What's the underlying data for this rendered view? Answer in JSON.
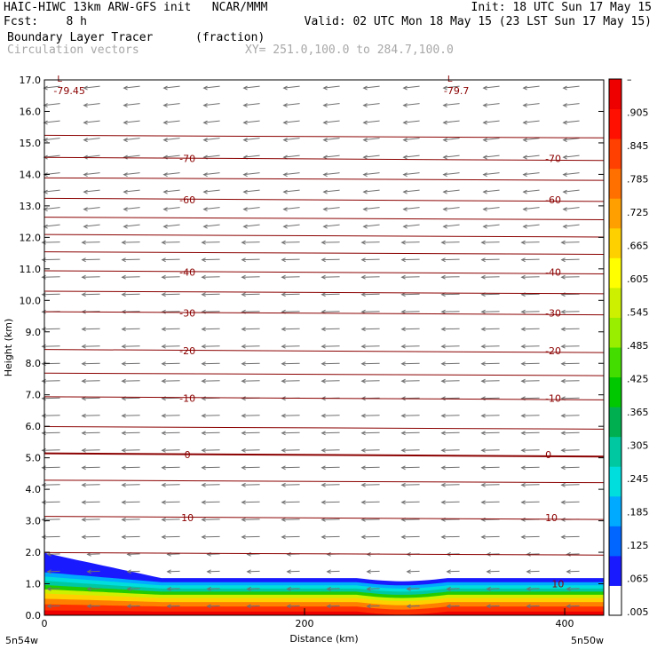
{
  "header": {
    "line1_left": "HAIC-HIWC 13km ARW-GFS init   NCAR/MMM",
    "line1_right": "Init: 18 UTC Sun 17 May 15",
    "line2_left": "Fcst:    8 h",
    "line2_right": "Valid: 02 UTC Mon 18 May 15 (23 LST Sun 17 May 15)",
    "line3_field": "Boundary Layer Tracer",
    "line3_units": "(fraction)",
    "line4_field": "Circulation vectors",
    "line4_xy": "XY= 251.0,100.0 to 284.7,100.0"
  },
  "colorbar": {
    "labels": [
      "–",
      ".905",
      ".845",
      ".785",
      ".725",
      ".665",
      ".605",
      ".545",
      ".485",
      ".425",
      ".365",
      ".305",
      ".245",
      ".185",
      ".125",
      ".065",
      ".005"
    ],
    "colors": [
      "#ffffff",
      "#1a1aff",
      "#0066ff",
      "#00aaff",
      "#00dddd",
      "#00c8a0",
      "#00b050",
      "#00c800",
      "#44dd00",
      "#99ee00",
      "#ccf000",
      "#ffff00",
      "#ffd000",
      "#ffa000",
      "#ff7000",
      "#ff4000",
      "#ff1000",
      "#ee0000"
    ]
  },
  "chart_data": {
    "type": "contour cross-section",
    "xlabel": "Distance (km)",
    "ylabel": "Height (km)",
    "xlim": [
      0,
      430
    ],
    "ylim": [
      0,
      17
    ],
    "x_ticks": [
      0,
      200,
      400
    ],
    "y_ticks": [
      "0.0",
      "1.0",
      "2.0",
      "3.0",
      "4.0",
      "5.0",
      "6.0",
      "7.0",
      "8.0",
      "9.0",
      "10.0",
      "11.0",
      "12.0",
      "13.0",
      "14.0",
      "15.0",
      "16.0",
      "17.0"
    ],
    "x_endpoint_left": "5n54w",
    "x_endpoint_right": "5n50w",
    "tracer_layer_top_km": 1.1,
    "temperature_contours": [
      {
        "value": 10,
        "label": "10",
        "height_km": 3.1
      },
      {
        "value": 0,
        "label": "0",
        "height_km": 5.1
      },
      {
        "value": -10,
        "label": "-10",
        "height_km": 6.9
      },
      {
        "value": -20,
        "label": "-20",
        "height_km": 8.4
      },
      {
        "value": -30,
        "label": "-30",
        "height_km": 9.6
      },
      {
        "value": -40,
        "label": "-40",
        "height_km": 10.9
      },
      {
        "value": -60,
        "label": "-60",
        "height_km": 13.2
      },
      {
        "value": -70,
        "label": "-70",
        "height_km": 14.5
      }
    ],
    "minima": [
      {
        "label": "L",
        "value": "-79.45",
        "x_km": 3
      },
      {
        "label": "L",
        "value": "-79.7",
        "x_km": 303
      }
    ],
    "extra_contour_labels": [
      {
        "label": "10",
        "x_km": 390,
        "height_km": 1.0
      }
    ]
  }
}
